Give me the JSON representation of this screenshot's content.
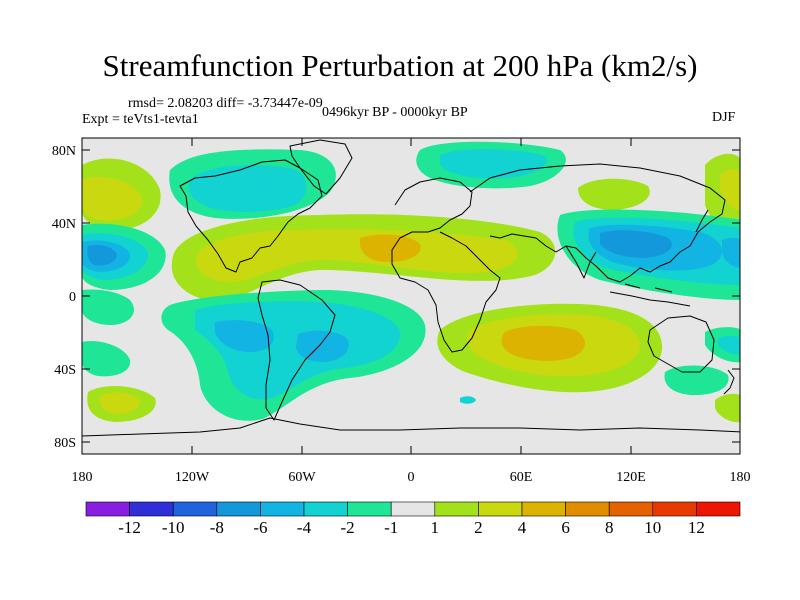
{
  "title": "Streamfunction Perturbation at 200 hPa (km2/s)",
  "stats_text": "rmsd= 2.08203  diff= -3.73447e-09",
  "experiment_text": "Expt = teVts1-tevta1",
  "period_text": "0496kyr BP - 0000kyr BP",
  "season_text": "DJF",
  "lat_ticks": [
    "80N",
    "40N",
    "0",
    "40S",
    "80S"
  ],
  "lon_ticks": [
    "180",
    "120W",
    "60W",
    "0",
    "60E",
    "120E",
    "180"
  ],
  "colorbar": {
    "labels": [
      "-12",
      "-10",
      "-8",
      "-6",
      "-4",
      "-2",
      "-1",
      "1",
      "2",
      "4",
      "6",
      "8",
      "10",
      "12"
    ],
    "colors": [
      "#8a1ee0",
      "#2f2ed8",
      "#1f64dc",
      "#1498dc",
      "#12b4e4",
      "#13d2d2",
      "#1ee696",
      "#e6e6e6",
      "#a3e21a",
      "#cad810",
      "#dcb300",
      "#e08e00",
      "#e56200",
      "#e83a00",
      "#ee1600"
    ]
  },
  "colors": {
    "background": "#e6e6e6",
    "coast": "#000000"
  }
}
